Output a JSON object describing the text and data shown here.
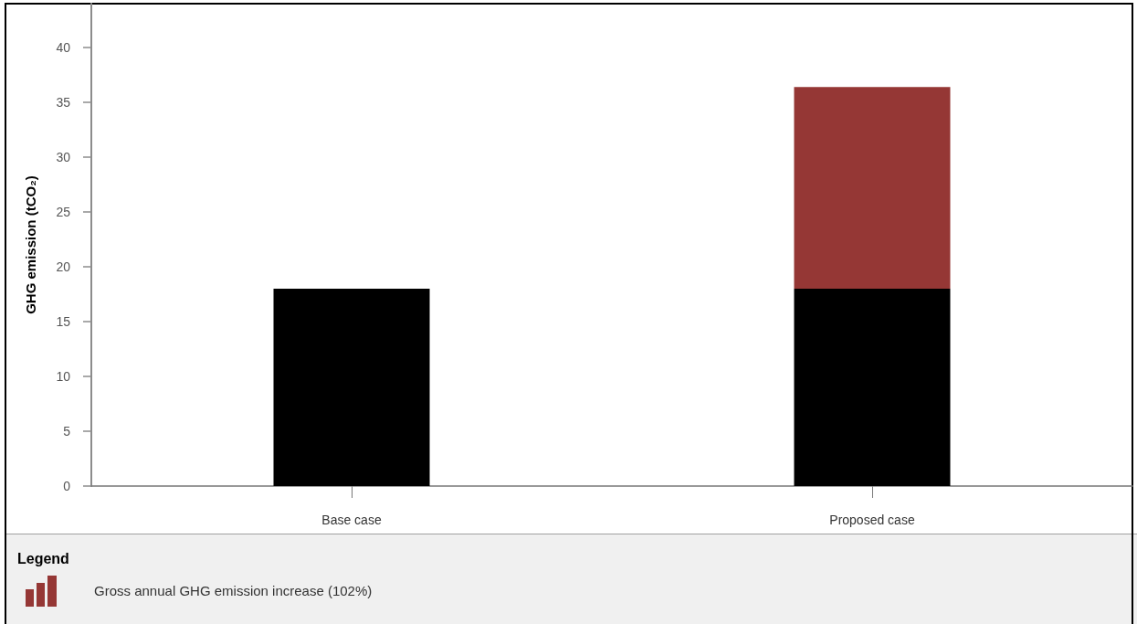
{
  "chart_data": {
    "type": "bar",
    "categories": [
      "Base case",
      "Proposed case"
    ],
    "series": [
      {
        "color": "#000000",
        "values": [
          18,
          18
        ]
      },
      {
        "name": "Gross annual GHG emission increase (102%)",
        "color": "#953735",
        "values": [
          null,
          18.4
        ]
      }
    ],
    "stacked": true,
    "ylabel": "GHG emission (tCO₂)",
    "ylim": [
      0,
      44
    ],
    "yticks": [
      0,
      5,
      10,
      15,
      20,
      25,
      30,
      35,
      40
    ],
    "legend": "bottom left",
    "legend_title": "Legend"
  }
}
